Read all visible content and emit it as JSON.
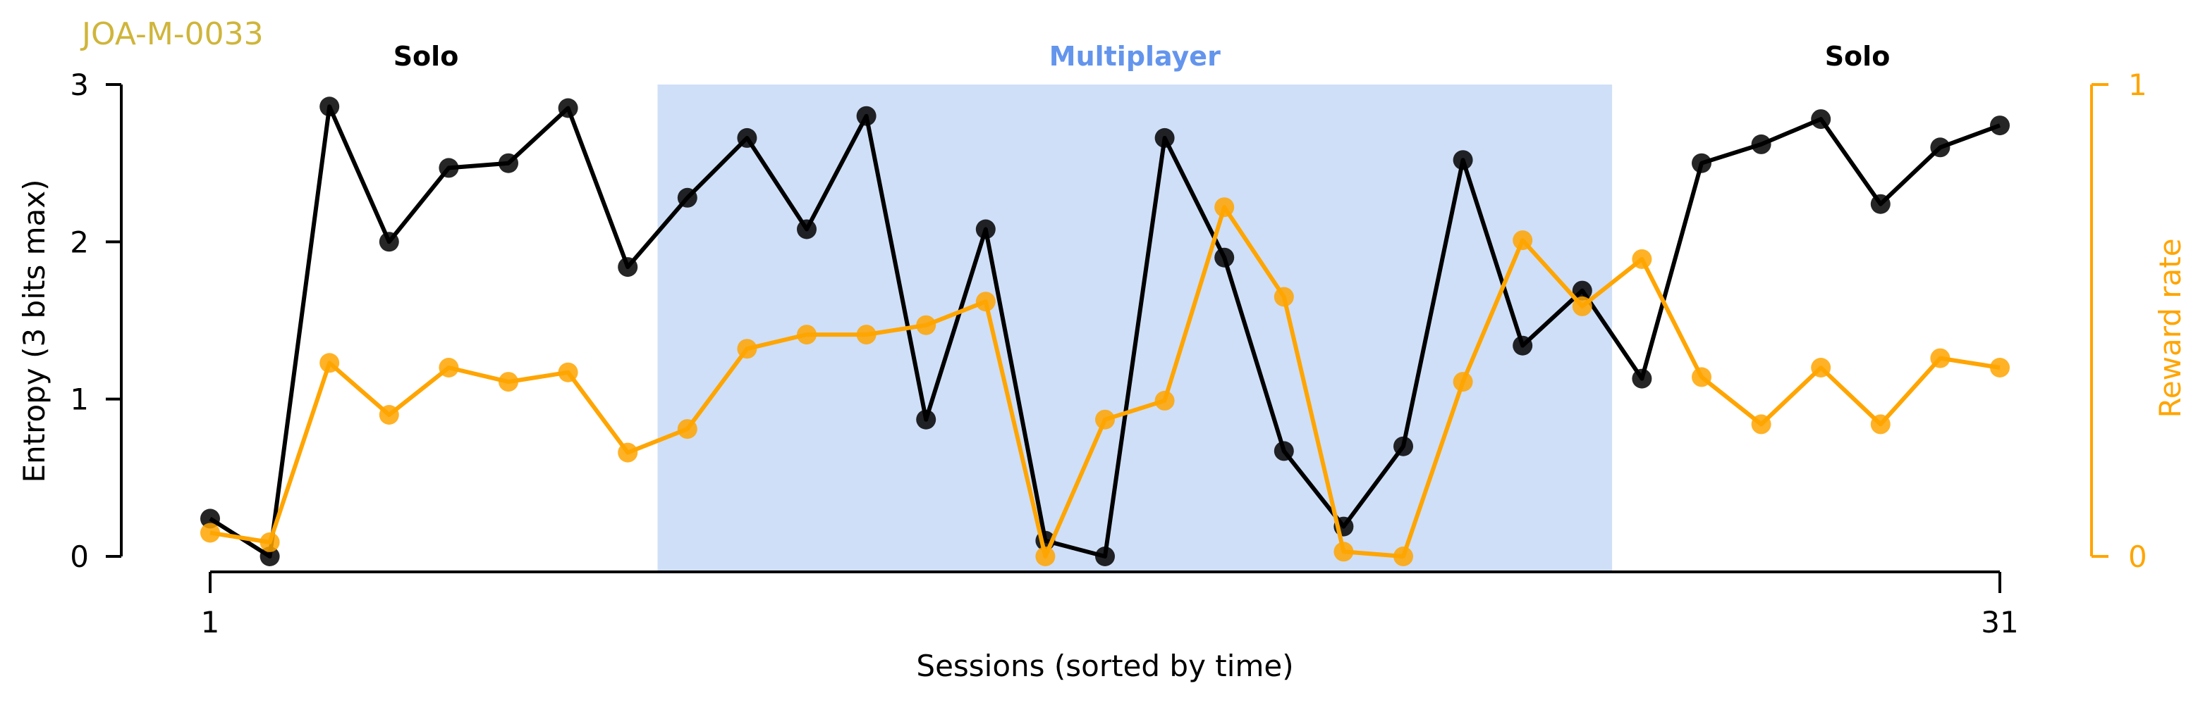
{
  "chart_data": {
    "type": "line",
    "subject_id": "JOA-M-0033",
    "xlabel": "Sessions (sorted by time)",
    "ylabel_left": "Entropy (3 bits max)",
    "ylabel_right": "Reward rate",
    "x": [
      1,
      2,
      3,
      4,
      5,
      6,
      7,
      8,
      9,
      10,
      11,
      12,
      13,
      14,
      15,
      16,
      17,
      18,
      19,
      20,
      21,
      22,
      23,
      24,
      25,
      26,
      27,
      28,
      29,
      30,
      31
    ],
    "xlim": [
      1,
      31
    ],
    "x_ticks": [
      "1",
      "31"
    ],
    "ylim_left": [
      0,
      3
    ],
    "y_ticks_left": [
      "0",
      "1",
      "2",
      "3"
    ],
    "ylim_right": [
      0,
      1
    ],
    "y_ticks_right": [
      "0",
      "1"
    ],
    "grid": false,
    "colors": {
      "entropy": "#000000",
      "reward": "#ffa500",
      "multiplayer_band": "#cfdff7",
      "multiplayer_label": "#6495ed",
      "subject_id": "#cfb53b",
      "solo_label": "#000000"
    },
    "regions": [
      {
        "label": "Solo",
        "x_start": 1,
        "x_end": 8.5
      },
      {
        "label": "Multiplayer",
        "x_start": 8.5,
        "x_end": 24.5,
        "shaded": true
      },
      {
        "label": "Solo",
        "x_start": 24.5,
        "x_end": 31
      }
    ],
    "series": [
      {
        "key": "entropy",
        "axis": "left",
        "values": [
          0.24,
          0.0,
          2.86,
          2.0,
          2.47,
          2.5,
          2.85,
          1.84,
          2.28,
          2.66,
          2.08,
          2.8,
          0.87,
          2.08,
          0.1,
          0.0,
          2.66,
          1.9,
          0.67,
          0.19,
          0.7,
          2.52,
          1.34,
          1.69,
          1.13,
          2.5,
          2.62,
          2.78,
          2.24,
          2.6,
          2.74
        ]
      },
      {
        "key": "reward",
        "axis": "right",
        "values": [
          0.05,
          0.03,
          0.41,
          0.3,
          0.4,
          0.37,
          0.39,
          0.22,
          0.27,
          0.44,
          0.47,
          0.47,
          0.49,
          0.54,
          0.0,
          0.29,
          0.33,
          0.74,
          0.55,
          0.01,
          0.0,
          0.37,
          0.67,
          0.53,
          0.63,
          0.38,
          0.28,
          0.4,
          0.28,
          0.42,
          0.4
        ]
      }
    ]
  }
}
